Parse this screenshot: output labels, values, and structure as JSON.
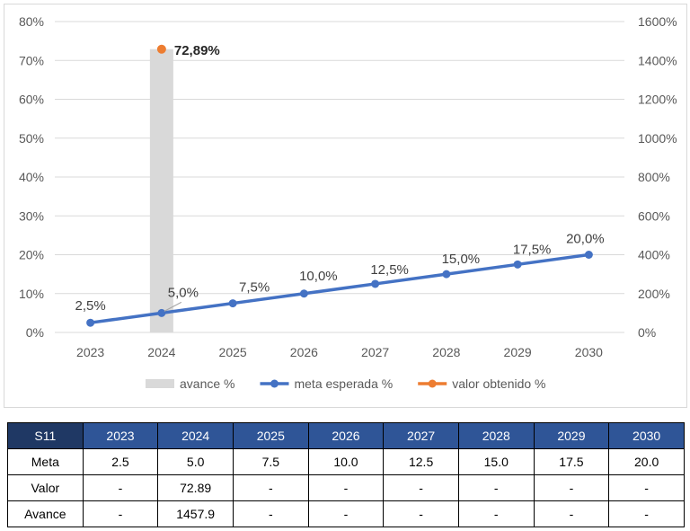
{
  "chart_data": {
    "type": "bar+line",
    "categories": [
      "2023",
      "2024",
      "2025",
      "2026",
      "2027",
      "2028",
      "2029",
      "2030"
    ],
    "y_left": {
      "ticks": [
        "0%",
        "10%",
        "20%",
        "30%",
        "40%",
        "50%",
        "60%",
        "70%",
        "80%"
      ],
      "ylim": [
        0,
        80
      ]
    },
    "y_right": {
      "ticks": [
        "0%",
        "200%",
        "400%",
        "600%",
        "800%",
        "1000%",
        "1200%",
        "1400%",
        "1600%"
      ],
      "ylim": [
        0,
        1600
      ]
    },
    "grid": true,
    "legend_position": "bottom",
    "series": [
      {
        "name": "avance %",
        "kind": "bar",
        "axis": "right",
        "color": "#d9d9d9",
        "values": [
          null,
          1457.9,
          null,
          null,
          null,
          null,
          null,
          null
        ]
      },
      {
        "name": "meta esperada %",
        "kind": "line",
        "axis": "left",
        "color": "#4472c4",
        "values": [
          2.5,
          5.0,
          7.5,
          10.0,
          12.5,
          15.0,
          17.5,
          20.0
        ],
        "labels": [
          "2,5%",
          "5,0%",
          "7,5%",
          "10,0%",
          "12,5%",
          "15,0%",
          "17,5%",
          "20,0%"
        ]
      },
      {
        "name": "valor obtenido %",
        "kind": "line",
        "axis": "left",
        "color": "#ed7d31",
        "values": [
          null,
          72.89,
          null,
          null,
          null,
          null,
          null,
          null
        ],
        "labels": [
          null,
          "72,89%",
          null,
          null,
          null,
          null,
          null,
          null
        ]
      }
    ]
  },
  "table": {
    "corner": "S11",
    "years": [
      "2023",
      "2024",
      "2025",
      "2026",
      "2027",
      "2028",
      "2029",
      "2030"
    ],
    "rows": [
      {
        "label": "Meta",
        "cells": [
          "2.5",
          "5.0",
          "7.5",
          "10.0",
          "12.5",
          "15.0",
          "17.5",
          "20.0"
        ]
      },
      {
        "label": "Valor",
        "cells": [
          "-",
          "72.89",
          "-",
          "-",
          "-",
          "-",
          "-",
          "-"
        ]
      },
      {
        "label": "Avance",
        "cells": [
          "-",
          "1457.9",
          "-",
          "-",
          "-",
          "-",
          "-",
          "-"
        ]
      }
    ]
  }
}
